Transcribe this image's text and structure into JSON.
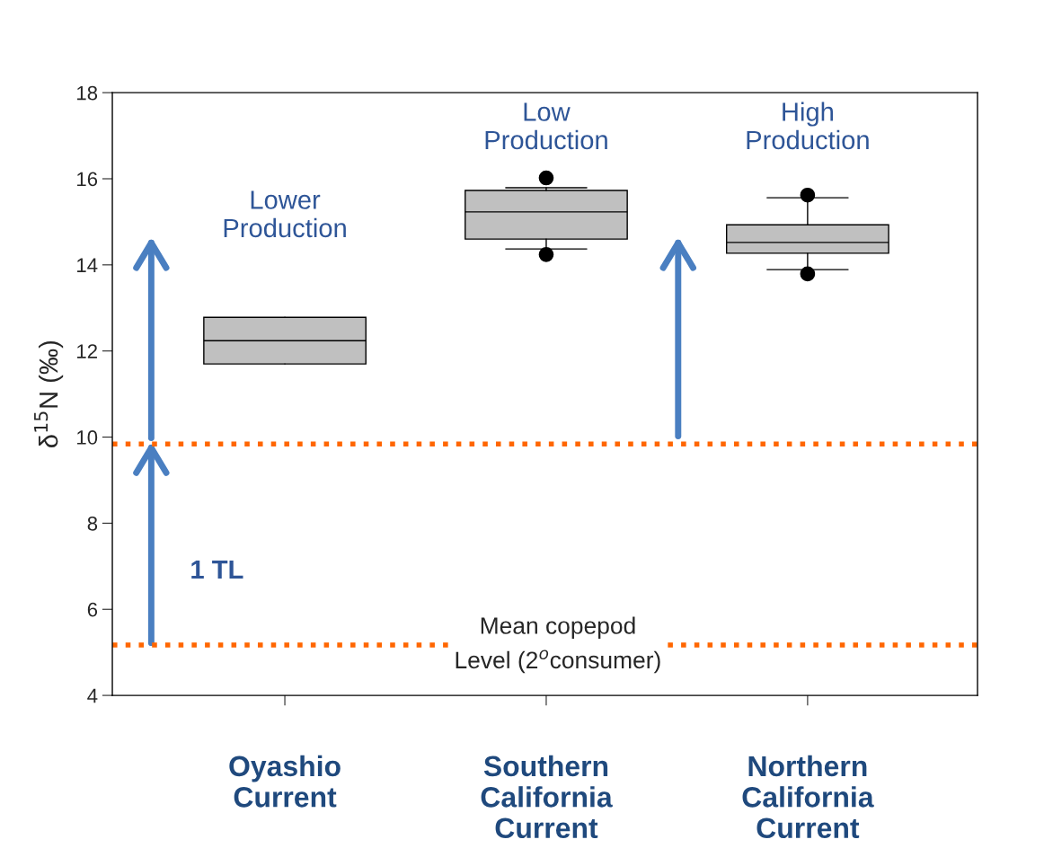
{
  "chart_data": {
    "type": "box",
    "ylabel": "δ$^{15}$N (‰)",
    "categories": [
      "Oyashio\nCurrent",
      "Southern\nCalifornia\nCurrent",
      "Northern\nCalifornia\nCurrent"
    ],
    "color": "#c0c0c0",
    "boxes": [
      {
        "low": 11.7,
        "q1": 11.7,
        "median": 12.24,
        "q3": 12.78,
        "high": 12.78
      },
      {
        "low": 14.37,
        "q1": 14.6,
        "median": 15.23,
        "q3": 15.73,
        "high": 15.79,
        "outliers": [
          16.02,
          14.24
        ]
      },
      {
        "low": 13.89,
        "q1": 14.27,
        "median": 14.52,
        "q3": 14.93,
        "high": 15.56,
        "outliers": [
          15.62,
          13.79
        ]
      }
    ],
    "ylim": [
      4,
      18
    ],
    "yticks": [
      4,
      6,
      8,
      10,
      12,
      14,
      16,
      18
    ],
    "ref_lines": [
      {
        "axis": "y",
        "value": 5.17,
        "label": "Mean copepod\nLevel (2$^{o}$consumer)",
        "color": "#ff6600",
        "line_style": "dotted"
      },
      {
        "axis": "y",
        "value": 9.84,
        "color": "#ff6600",
        "line_style": "dotted"
      }
    ],
    "annotations": [
      "Lower\nProduction",
      "Low\nProduction",
      "High\nProduction",
      "1 TL"
    ],
    "grid": false
  }
}
